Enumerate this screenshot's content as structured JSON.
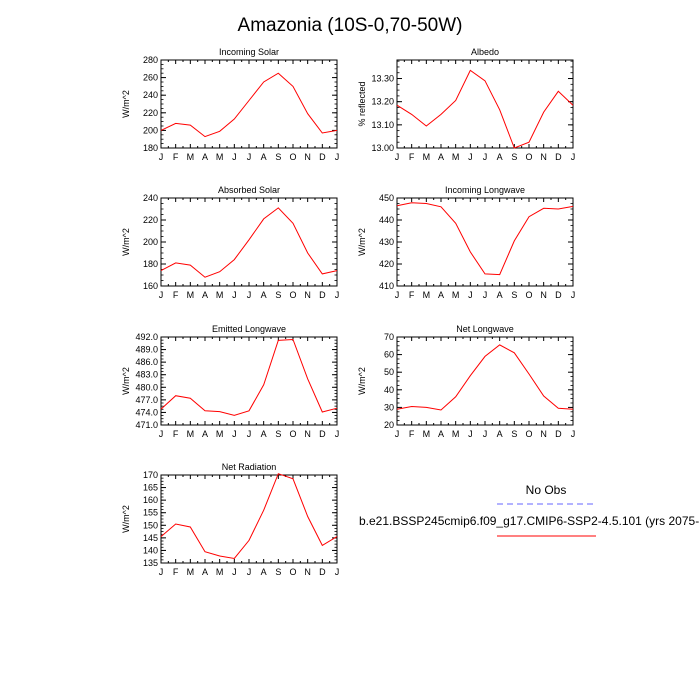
{
  "figure": {
    "title": "Amazonia (10S-0,70-50W)",
    "months": [
      "J",
      "F",
      "M",
      "A",
      "M",
      "J",
      "J",
      "A",
      "S",
      "O",
      "N",
      "D",
      "J"
    ],
    "legend": {
      "obs_label": "No Obs",
      "model_label": "b.e21.BSSP245cmip6.f09_g17.CMIP6-SSP2-4.5.101 (yrs 2075-",
      "obs_color": "#6666ff",
      "model_color": "#ff0000"
    }
  },
  "chart_data": [
    {
      "type": "line",
      "title": "Incoming Solar",
      "xlabel": "",
      "ylabel": "W/m^2",
      "ylim": [
        180,
        280
      ],
      "yticks": [
        180,
        200,
        220,
        240,
        260,
        280
      ],
      "ytick_labels": [
        "180",
        "200",
        "220",
        "240",
        "260",
        "280"
      ],
      "x": [
        "J",
        "F",
        "M",
        "A",
        "M",
        "J",
        "J",
        "A",
        "S",
        "O",
        "N",
        "D",
        "J"
      ],
      "series": [
        {
          "name": "model",
          "color": "#ff0000",
          "values": [
            200,
            208,
            206,
            193,
            199,
            213,
            234,
            255,
            265,
            250,
            219,
            197,
            200
          ]
        }
      ]
    },
    {
      "type": "line",
      "title": "Albedo",
      "xlabel": "",
      "ylabel": "% reflected",
      "ylim": [
        13.0,
        13.38
      ],
      "yticks": [
        13.0,
        13.1,
        13.2,
        13.3
      ],
      "ytick_labels": [
        "13.00",
        "13.10",
        "13.20",
        "13.30"
      ],
      "x": [
        "J",
        "F",
        "M",
        "A",
        "M",
        "J",
        "J",
        "A",
        "S",
        "O",
        "N",
        "D",
        "J"
      ],
      "series": [
        {
          "name": "model",
          "color": "#ff0000",
          "values": [
            13.185,
            13.145,
            13.095,
            13.145,
            13.205,
            13.335,
            13.29,
            13.165,
            13.0,
            13.025,
            13.155,
            13.245,
            13.185
          ]
        }
      ]
    },
    {
      "type": "line",
      "title": "Absorbed Solar",
      "xlabel": "",
      "ylabel": "W/m^2",
      "ylim": [
        160,
        240
      ],
      "yticks": [
        160,
        180,
        200,
        220,
        240
      ],
      "ytick_labels": [
        "160",
        "180",
        "200",
        "220",
        "240"
      ],
      "x": [
        "J",
        "F",
        "M",
        "A",
        "M",
        "J",
        "J",
        "A",
        "S",
        "O",
        "N",
        "D",
        "J"
      ],
      "series": [
        {
          "name": "model",
          "color": "#ff0000",
          "values": [
            174,
            181,
            179,
            168,
            173,
            184,
            202,
            221,
            231,
            217,
            190,
            171,
            174
          ]
        }
      ]
    },
    {
      "type": "line",
      "title": "Incoming Longwave",
      "xlabel": "",
      "ylabel": "W/m^2",
      "ylim": [
        410,
        450
      ],
      "yticks": [
        410,
        420,
        430,
        440,
        450
      ],
      "ytick_labels": [
        "410",
        "420",
        "430",
        "440",
        "450"
      ],
      "x": [
        "J",
        "F",
        "M",
        "A",
        "M",
        "J",
        "J",
        "A",
        "S",
        "O",
        "N",
        "D",
        "J"
      ],
      "series": [
        {
          "name": "model",
          "color": "#ff0000",
          "values": [
            446.5,
            447.8,
            447.5,
            446.0,
            438.5,
            425.5,
            415.5,
            415.2,
            430.5,
            441.5,
            445.3,
            445.0,
            446.2
          ]
        }
      ]
    },
    {
      "type": "line",
      "title": "Emitted Longwave",
      "xlabel": "",
      "ylabel": "W/m^2",
      "ylim": [
        471,
        492
      ],
      "yticks": [
        471,
        474,
        477,
        480,
        483,
        486,
        489,
        492
      ],
      "ytick_labels": [
        "471.0",
        "474.0",
        "477.0",
        "480.0",
        "483.0",
        "486.0",
        "489.0",
        "492.0"
      ],
      "x": [
        "J",
        "F",
        "M",
        "A",
        "M",
        "J",
        "J",
        "A",
        "S",
        "O",
        "N",
        "D",
        "J"
      ],
      "series": [
        {
          "name": "model",
          "color": "#ff0000",
          "values": [
            474.8,
            478.0,
            477.4,
            474.4,
            474.2,
            473.3,
            474.4,
            480.6,
            491.2,
            491.4,
            482.0,
            474.1,
            475.0
          ]
        }
      ]
    },
    {
      "type": "line",
      "title": "Net Longwave",
      "xlabel": "",
      "ylabel": "W/m^2",
      "ylim": [
        20,
        70
      ],
      "yticks": [
        20,
        30,
        40,
        50,
        60,
        70
      ],
      "ytick_labels": [
        "20",
        "30",
        "40",
        "50",
        "60",
        "70"
      ],
      "x": [
        "J",
        "F",
        "M",
        "A",
        "M",
        "J",
        "J",
        "A",
        "S",
        "O",
        "N",
        "D",
        "J"
      ],
      "series": [
        {
          "name": "model",
          "color": "#ff0000",
          "values": [
            29,
            30.5,
            30,
            28.5,
            36,
            48,
            59,
            65.5,
            61,
            49,
            36.5,
            29.5,
            29
          ]
        }
      ]
    },
    {
      "type": "line",
      "title": "Net Radiation",
      "xlabel": "",
      "ylabel": "W/m^2",
      "ylim": [
        135,
        170
      ],
      "yticks": [
        135,
        140,
        145,
        150,
        155,
        160,
        165,
        170
      ],
      "ytick_labels": [
        "135",
        "140",
        "145",
        "150",
        "155",
        "160",
        "165",
        "170"
      ],
      "x": [
        "J",
        "F",
        "M",
        "A",
        "M",
        "J",
        "J",
        "A",
        "S",
        "O",
        "N",
        "D",
        "J"
      ],
      "series": [
        {
          "name": "model",
          "color": "#ff0000",
          "values": [
            145.5,
            150.5,
            149.3,
            139.5,
            137.8,
            136.8,
            144,
            156,
            170.5,
            168.5,
            153.5,
            142,
            145.5
          ]
        }
      ]
    }
  ]
}
